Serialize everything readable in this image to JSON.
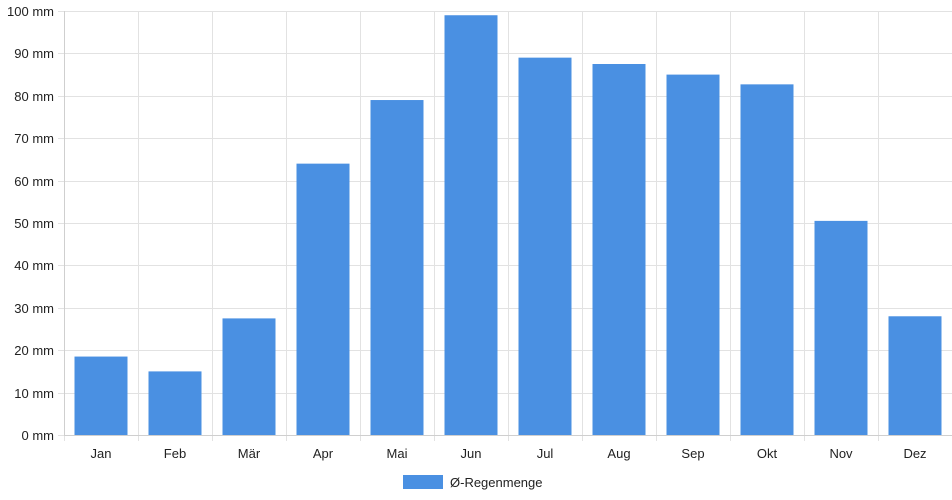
{
  "chart_data": {
    "type": "bar",
    "categories": [
      "Jan",
      "Feb",
      "Mär",
      "Apr",
      "Mai",
      "Jun",
      "Jul",
      "Aug",
      "Sep",
      "Okt",
      "Nov",
      "Dez"
    ],
    "series": [
      {
        "name": "Ø-Regenmenge",
        "values": [
          18.5,
          15,
          27.5,
          64,
          79,
          99,
          89,
          87.5,
          85,
          82.7,
          50.5,
          28
        ],
        "color": "#4a90e2"
      }
    ],
    "y_ticks": [
      "0 mm",
      "10 mm",
      "20 mm",
      "30 mm",
      "40 mm",
      "50 mm",
      "60 mm",
      "70 mm",
      "80 mm",
      "90 mm",
      "100 mm"
    ],
    "ylim": [
      0,
      100
    ],
    "y_step": 10,
    "grid": true,
    "legend_position": "bottom"
  }
}
